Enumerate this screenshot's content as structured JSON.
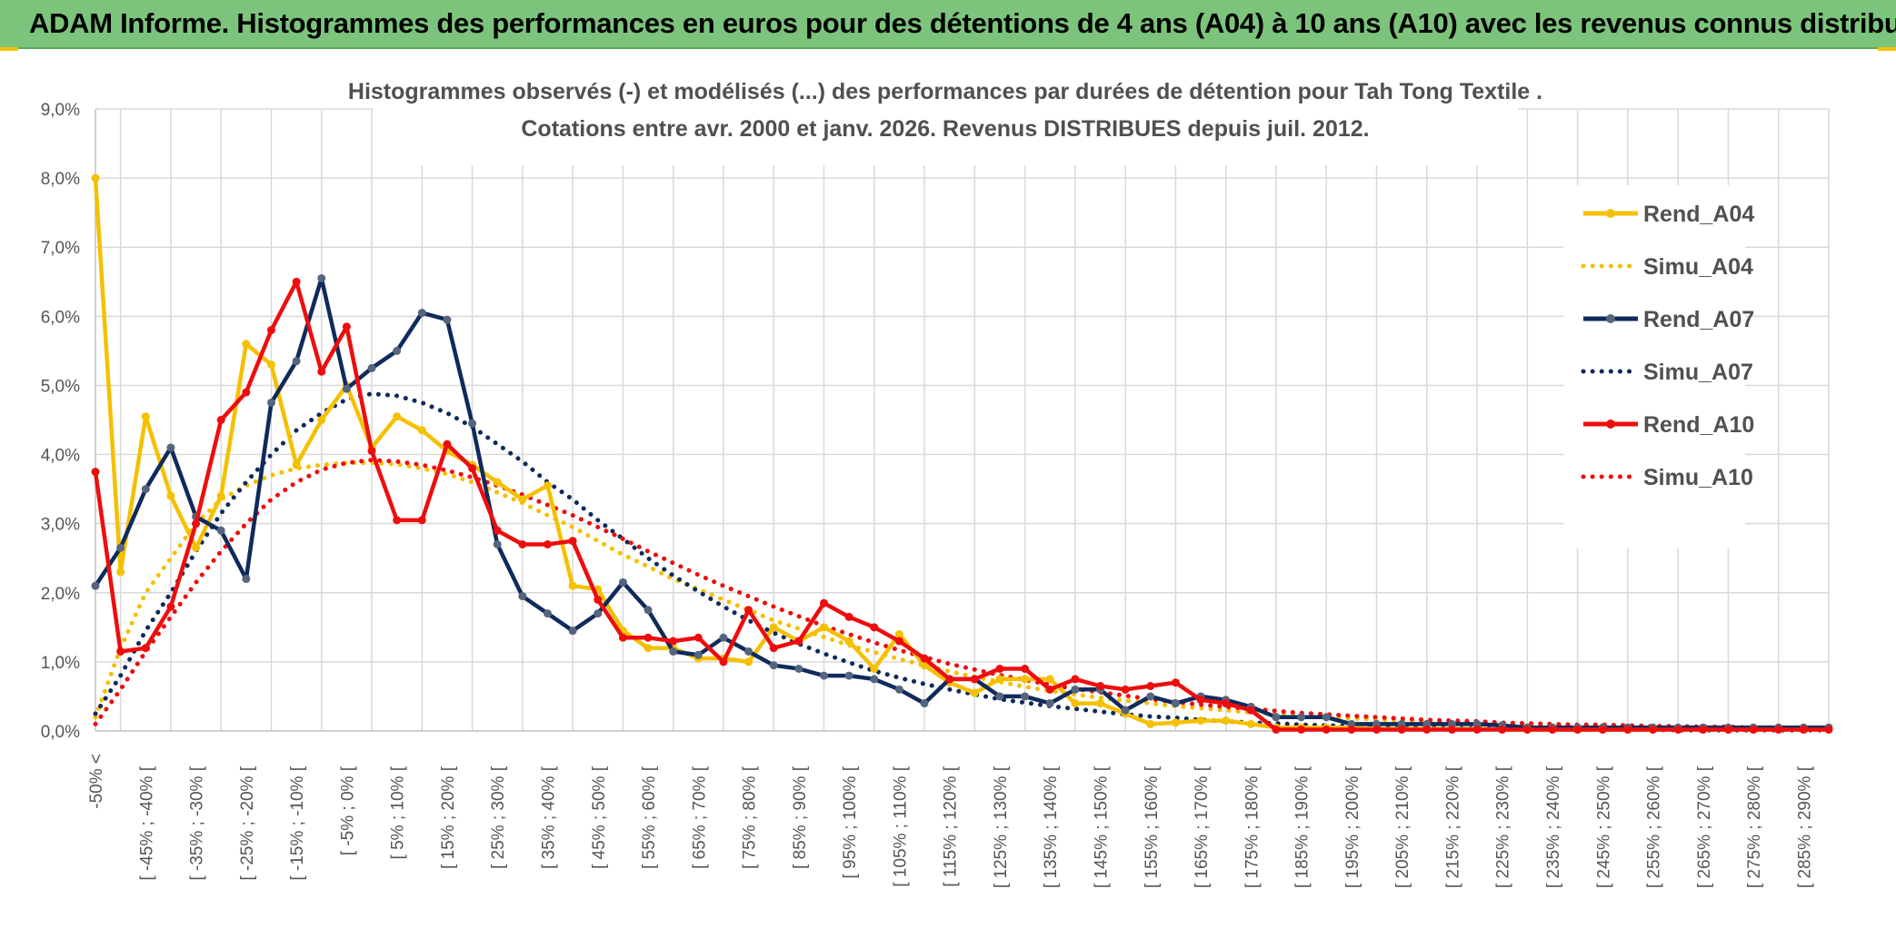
{
  "header": {
    "title": "ADAM Informe. Histogrammes des performances en euros pour des détentions de 4 ans (A04) à 10 ans (A10) avec les revenus connus distribués"
  },
  "chart_data": {
    "type": "line",
    "title": "Histogrammes observés (-) et modélisés (...) des performances par durées de détention pour Tah Tong Textile .",
    "subtitle": "Cotations entre avr. 2000 et janv. 2026. Revenus DISTRIBUES depuis juil. 2012.",
    "ylim": [
      0,
      9
    ],
    "y_unit": "%",
    "yticks": [
      "0,0%",
      "1,0%",
      "2,0%",
      "3,0%",
      "4,0%",
      "5,0%",
      "6,0%",
      "7,0%",
      "8,0%",
      "9,0%"
    ],
    "grid": true,
    "legend_position": "right",
    "x_labels": [
      "-50% <",
      "[ -45% ; -40% [",
      "[ -35% ; -30% [",
      "[ -25% ; -20% [",
      "[ -15% ; -10% [",
      "[ -5% ; 0% [",
      "[ 5% ; 10% [",
      "[ 15% ; 20% [",
      "[ 25% ; 30% [",
      "[ 35% ; 40% [",
      "[ 45% ; 50% [",
      "[ 55% ; 60% [",
      "[ 65% ; 70% [",
      "[ 75% ; 80% [",
      "[ 85% ; 90% [",
      "[ 95% ; 100% [",
      "[ 105% ; 110% [",
      "[ 115% ; 120% [",
      "[ 125% ; 130% [",
      "[ 135% ; 140% [",
      "[ 145% ; 150% [",
      "[ 155% ; 160% [",
      "[ 165% ; 170% [",
      "[ 175% ; 180% [",
      "[ 185% ; 190% [",
      "[ 195% ; 200% [",
      "[ 205% ; 210% [",
      "[ 215% ; 220% [",
      "[ 225% ; 230% [",
      "[ 235% ; 240% [",
      "[ 245% ; 250% [",
      "[ 255% ; 260% [",
      "[ 265% ; 270% [",
      "[ 275% ; 280% [",
      "[ 285% ; 290% ["
    ],
    "n_points": 70,
    "series": [
      {
        "name": "Rend_A04",
        "style": "solid",
        "color": "#f5c000",
        "values": [
          8.0,
          2.3,
          4.55,
          3.4,
          2.65,
          3.4,
          5.6,
          5.3,
          3.85,
          4.5,
          5.0,
          4.1,
          4.55,
          4.35,
          4.05,
          3.85,
          3.6,
          3.35,
          3.55,
          2.1,
          2.05,
          1.45,
          1.2,
          1.2,
          1.05,
          1.05,
          1.0,
          1.5,
          1.3,
          1.5,
          1.3,
          0.9,
          1.4,
          0.95,
          0.7,
          0.55,
          0.75,
          0.75,
          0.75,
          0.4,
          0.4,
          0.25,
          0.1,
          0.12,
          0.15,
          0.15,
          0.1,
          0.05,
          0.05,
          0.05,
          0.05,
          0.03,
          0.03,
          0.03,
          0.03,
          0.03,
          0.02,
          0.02,
          0.02,
          0.02,
          0.02,
          0.02,
          0.02,
          0.02,
          0.02,
          0.02,
          0.02,
          0.02,
          0.02,
          0.02
        ]
      },
      {
        "name": "Simu_A04",
        "style": "dotted",
        "color": "#f5c000",
        "values": [
          0.2,
          1.2,
          2.0,
          2.5,
          3.0,
          3.35,
          3.55,
          3.7,
          3.8,
          3.85,
          3.88,
          3.88,
          3.86,
          3.8,
          3.72,
          3.6,
          3.45,
          3.3,
          3.12,
          2.95,
          2.75,
          2.55,
          2.38,
          2.2,
          2.05,
          1.9,
          1.75,
          1.6,
          1.48,
          1.36,
          1.24,
          1.14,
          1.04,
          0.95,
          0.86,
          0.78,
          0.71,
          0.64,
          0.58,
          0.53,
          0.48,
          0.44,
          0.4,
          0.36,
          0.33,
          0.3,
          0.27,
          0.25,
          0.22,
          0.2,
          0.18,
          0.17,
          0.15,
          0.14,
          0.13,
          0.12,
          0.11,
          0.1,
          0.09,
          0.08,
          0.07,
          0.07,
          0.06,
          0.06,
          0.05,
          0.05,
          0.04,
          0.04,
          0.04,
          0.03
        ]
      },
      {
        "name": "Rend_A07",
        "style": "solid",
        "color": "#0f2a5c",
        "values": [
          2.1,
          2.65,
          3.5,
          4.1,
          3.1,
          2.9,
          2.2,
          4.75,
          5.35,
          6.55,
          4.95,
          5.25,
          5.5,
          6.05,
          5.95,
          4.45,
          2.7,
          1.95,
          1.7,
          1.45,
          1.7,
          2.15,
          1.75,
          1.15,
          1.1,
          1.35,
          1.15,
          0.95,
          0.9,
          0.8,
          0.8,
          0.75,
          0.6,
          0.4,
          0.75,
          0.75,
          0.5,
          0.5,
          0.4,
          0.6,
          0.6,
          0.3,
          0.5,
          0.4,
          0.5,
          0.45,
          0.35,
          0.2,
          0.2,
          0.2,
          0.1,
          0.1,
          0.1,
          0.1,
          0.1,
          0.1,
          0.08,
          0.05,
          0.05,
          0.05,
          0.05,
          0.05,
          0.05,
          0.05,
          0.05,
          0.05,
          0.05,
          0.05,
          0.05,
          0.05
        ]
      },
      {
        "name": "Simu_A07",
        "style": "dotted",
        "color": "#0f2a5c",
        "values": [
          0.25,
          0.8,
          1.45,
          2.0,
          2.6,
          3.15,
          3.6,
          4.0,
          4.35,
          4.6,
          4.8,
          4.88,
          4.85,
          4.75,
          4.6,
          4.4,
          4.15,
          3.9,
          3.6,
          3.35,
          3.05,
          2.78,
          2.5,
          2.25,
          2.02,
          1.8,
          1.6,
          1.42,
          1.26,
          1.12,
          0.99,
          0.87,
          0.77,
          0.68,
          0.6,
          0.53,
          0.46,
          0.41,
          0.36,
          0.32,
          0.28,
          0.24,
          0.21,
          0.19,
          0.16,
          0.14,
          0.12,
          0.11,
          0.09,
          0.08,
          0.07,
          0.06,
          0.05,
          0.05,
          0.04,
          0.04,
          0.03,
          0.03,
          0.02,
          0.02,
          0.02,
          0.02,
          0.02,
          0.01,
          0.01,
          0.01,
          0.01,
          0.01,
          0.01,
          0.01
        ]
      },
      {
        "name": "Rend_A10",
        "style": "solid",
        "color": "#ee0d0d",
        "values": [
          3.75,
          1.15,
          1.2,
          1.8,
          3.0,
          4.5,
          4.9,
          5.8,
          6.5,
          5.2,
          5.85,
          4.05,
          3.05,
          3.05,
          4.15,
          3.8,
          2.9,
          2.7,
          2.7,
          2.75,
          1.9,
          1.35,
          1.35,
          1.3,
          1.35,
          1.0,
          1.75,
          1.2,
          1.3,
          1.85,
          1.65,
          1.5,
          1.3,
          1.05,
          0.75,
          0.75,
          0.9,
          0.9,
          0.6,
          0.75,
          0.65,
          0.6,
          0.65,
          0.7,
          0.45,
          0.4,
          0.3,
          0.02,
          0.02,
          0.02,
          0.02,
          0.02,
          0.02,
          0.02,
          0.02,
          0.02,
          0.02,
          0.02,
          0.02,
          0.02,
          0.02,
          0.02,
          0.02,
          0.02,
          0.02,
          0.02,
          0.02,
          0.02,
          0.02,
          0.02
        ]
      },
      {
        "name": "Simu_A10",
        "style": "dotted",
        "color": "#ee0d0d",
        "values": [
          0.1,
          0.6,
          1.15,
          1.65,
          2.15,
          2.6,
          3.0,
          3.35,
          3.6,
          3.78,
          3.88,
          3.92,
          3.9,
          3.85,
          3.77,
          3.67,
          3.55,
          3.42,
          3.27,
          3.12,
          2.95,
          2.78,
          2.6,
          2.43,
          2.26,
          2.1,
          1.95,
          1.8,
          1.66,
          1.52,
          1.4,
          1.28,
          1.17,
          1.07,
          0.97,
          0.89,
          0.81,
          0.74,
          0.67,
          0.61,
          0.56,
          0.51,
          0.46,
          0.42,
          0.38,
          0.35,
          0.32,
          0.29,
          0.26,
          0.24,
          0.22,
          0.2,
          0.18,
          0.16,
          0.15,
          0.14,
          0.12,
          0.11,
          0.1,
          0.09,
          0.09,
          0.08,
          0.07,
          0.07,
          0.06,
          0.06,
          0.05,
          0.05,
          0.04,
          0.04
        ]
      }
    ]
  }
}
